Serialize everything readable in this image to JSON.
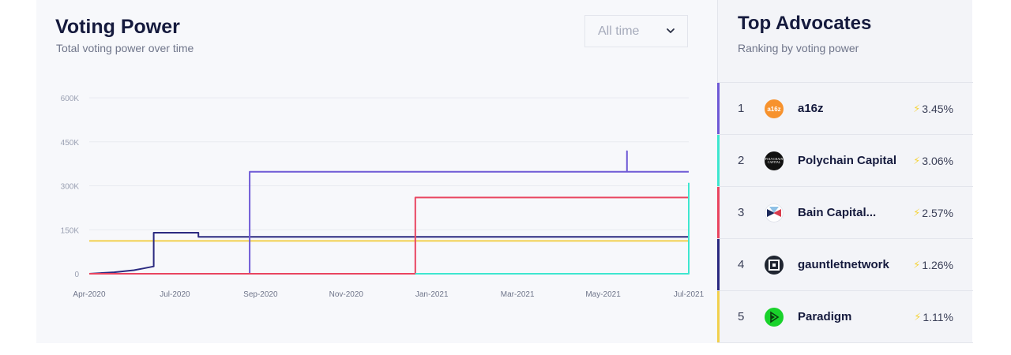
{
  "chart_panel": {
    "title": "Voting Power",
    "subtitle": "Total voting power over time",
    "range_select": {
      "value": "All time",
      "icon": "chevron-down-icon"
    }
  },
  "chart_data": {
    "type": "line",
    "title": "Voting Power",
    "subtitle": "Total voting power over time",
    "xlabel": "",
    "ylabel": "",
    "x_ticks": [
      "Apr-2020",
      "Jul-2020",
      "Sep-2020",
      "Nov-2020",
      "Jan-2021",
      "Mar-2021",
      "May-2021",
      "Jul-2021"
    ],
    "y_ticks": [
      "0",
      "150K",
      "300K",
      "450K",
      "600K"
    ],
    "ylim": [
      0,
      600000
    ],
    "xlim": [
      "2020-04-01",
      "2021-07-01"
    ],
    "grid": true,
    "legend": "none",
    "series": [
      {
        "color": "#f2d04d",
        "points": [
          [
            "2020-04-01",
            112000
          ],
          [
            "2021-07-01",
            112000
          ]
        ]
      },
      {
        "color": "#2b2a80",
        "points": [
          [
            "2020-04-01",
            0
          ],
          [
            "2020-04-20",
            5000
          ],
          [
            "2020-05-05",
            12000
          ],
          [
            "2020-05-12",
            18000
          ],
          [
            "2020-05-20",
            25000
          ],
          [
            "2020-05-20",
            140000
          ],
          [
            "2020-06-23",
            140000
          ],
          [
            "2020-06-23",
            126000
          ],
          [
            "2021-07-01",
            126000
          ]
        ]
      },
      {
        "color": "#6f5ad6",
        "points": [
          [
            "2020-04-01",
            0
          ],
          [
            "2020-08-01",
            0
          ],
          [
            "2020-08-01",
            348000
          ],
          [
            "2021-05-15",
            348000
          ],
          [
            "2021-05-15",
            418000
          ],
          [
            "2021-05-15",
            348000
          ],
          [
            "2021-07-01",
            348000
          ]
        ]
      },
      {
        "color": "#e94560",
        "points": [
          [
            "2020-04-01",
            0
          ],
          [
            "2020-12-05",
            0
          ],
          [
            "2020-12-05",
            260000
          ],
          [
            "2021-07-01",
            260000
          ]
        ]
      },
      {
        "color": "#3ee6cf",
        "points": [
          [
            "2020-12-05",
            0
          ],
          [
            "2021-07-01",
            0
          ],
          [
            "2021-07-01",
            310000
          ]
        ]
      }
    ]
  },
  "advocates_panel": {
    "title": "Top Advocates",
    "subtitle": "Ranking by voting power",
    "items": [
      {
        "rank": "1",
        "name": "a16z",
        "percent": "3.45%",
        "bar_color": "#6f5ad6",
        "logo_text": "a16z",
        "logo_bg": "#f7922d",
        "logo_fg": "#ffffff",
        "icon": "bolt-icon"
      },
      {
        "rank": "2",
        "name": "Polychain Capital",
        "percent": "3.06%",
        "bar_color": "#3ee6cf",
        "logo_text": "POLYCHAIN CAPITAL",
        "logo_bg": "#111111",
        "logo_fg": "#ffffff",
        "icon": "bolt-icon"
      },
      {
        "rank": "3",
        "name": "Bain Capital...",
        "percent": "2.57%",
        "bar_color": "#e94560",
        "logo_bg": "#ffffff",
        "icon": "bolt-icon"
      },
      {
        "rank": "4",
        "name": "gauntletnetwork",
        "percent": "1.26%",
        "bar_color": "#2b2a80",
        "logo_bg": "#1f2530",
        "icon": "bolt-icon"
      },
      {
        "rank": "5",
        "name": "Paradigm",
        "percent": "1.11%",
        "bar_color": "#f2d04d",
        "logo_bg": "#19d22b",
        "icon": "bolt-icon"
      }
    ]
  }
}
